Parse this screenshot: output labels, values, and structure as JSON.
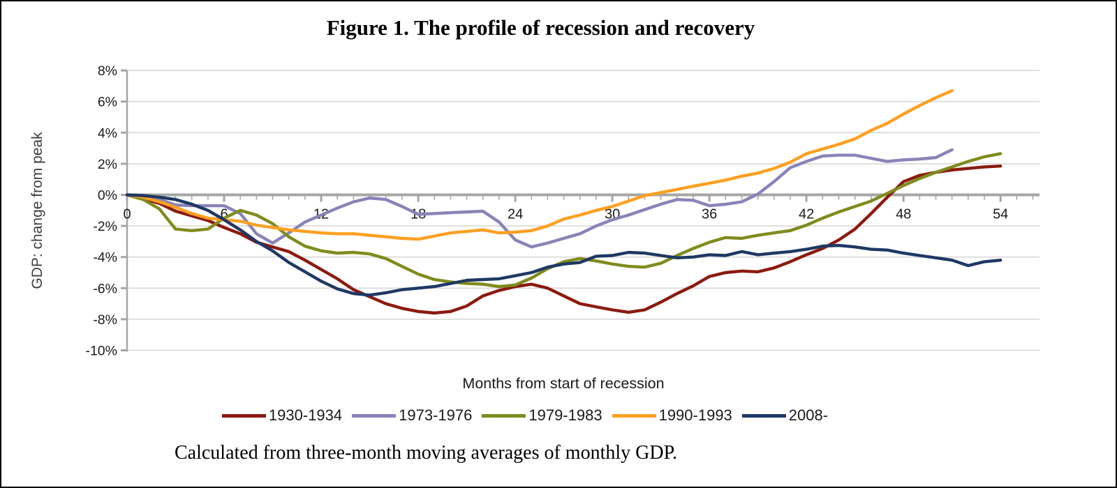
{
  "figure": {
    "caption": "Calculated from three-month moving averages of monthly GDP."
  },
  "chart_data": {
    "type": "line",
    "title": "Figure 1. The profile of recession and recovery",
    "xlabel": "Months from start of recession",
    "ylabel": "GDP: change from peak",
    "x_ticks": [
      0,
      6,
      12,
      18,
      24,
      30,
      36,
      42,
      48,
      54
    ],
    "x_tick_labels": [
      "0",
      "6",
      "12",
      "18",
      "24",
      "30",
      "36",
      "42",
      "48",
      "54"
    ],
    "y_ticks": [
      8,
      6,
      4,
      2,
      0,
      -2,
      -4,
      -6,
      -8,
      -10
    ],
    "y_tick_labels": [
      "8%",
      "6%",
      "4%",
      "2%",
      "0%",
      "-2%",
      "-4%",
      "-6%",
      "-8%",
      "-10%"
    ],
    "ylim": [
      -10,
      8
    ],
    "xlim": [
      0,
      56.5
    ],
    "grid": "horizontal",
    "legend_position": "bottom",
    "axis_colors": {
      "zero_line": "#a6a6a6",
      "gridline": "#d8d8d8",
      "spine": "#a6a6a6"
    },
    "series": [
      {
        "name": "1930-1934",
        "color": "#8B1A10",
        "start_month": 0,
        "values": [
          0,
          -0.25,
          -0.55,
          -1.05,
          -1.35,
          -1.65,
          -2.1,
          -2.5,
          -3.05,
          -3.35,
          -3.65,
          -4.2,
          -4.8,
          -5.4,
          -6.1,
          -6.55,
          -7.0,
          -7.3,
          -7.5,
          -7.6,
          -7.5,
          -7.15,
          -6.5,
          -6.15,
          -5.9,
          -5.75,
          -6.0,
          -6.5,
          -7.0,
          -7.2,
          -7.4,
          -7.55,
          -7.4,
          -6.9,
          -6.35,
          -5.85,
          -5.25,
          -5.0,
          -4.9,
          -4.95,
          -4.7,
          -4.3,
          -3.85,
          -3.45,
          -2.9,
          -2.2,
          -1.2,
          -0.15,
          0.85,
          1.25,
          1.45,
          1.6,
          1.7,
          1.8,
          1.85
        ]
      },
      {
        "name": "1973-1976",
        "color": "#8884B8",
        "start_month": 0,
        "values": [
          0,
          -0.1,
          -0.3,
          -0.65,
          -0.7,
          -0.7,
          -0.7,
          -1.2,
          -2.5,
          -3.1,
          -2.45,
          -1.75,
          -1.3,
          -0.85,
          -0.45,
          -0.2,
          -0.3,
          -0.75,
          -1.25,
          -1.2,
          -1.15,
          -1.1,
          -1.05,
          -1.75,
          -2.9,
          -3.35,
          -3.1,
          -2.8,
          -2.5,
          -2.0,
          -1.6,
          -1.3,
          -0.95,
          -0.6,
          -0.3,
          -0.35,
          -0.7,
          -0.6,
          -0.45,
          0.05,
          0.85,
          1.75,
          2.15,
          2.5,
          2.55,
          2.55,
          2.35,
          2.15,
          2.25,
          2.3,
          2.4,
          2.9
        ]
      },
      {
        "name": "1979-1983",
        "color": "#7F8B1D",
        "start_month": 0,
        "values": [
          0,
          -0.3,
          -0.9,
          -2.2,
          -2.3,
          -2.2,
          -1.5,
          -1.0,
          -1.3,
          -1.85,
          -2.7,
          -3.3,
          -3.6,
          -3.75,
          -3.7,
          -3.8,
          -4.1,
          -4.6,
          -5.1,
          -5.45,
          -5.6,
          -5.7,
          -5.75,
          -5.9,
          -5.8,
          -5.35,
          -4.75,
          -4.3,
          -4.1,
          -4.25,
          -4.45,
          -4.6,
          -4.65,
          -4.4,
          -3.9,
          -3.45,
          -3.05,
          -2.75,
          -2.8,
          -2.6,
          -2.45,
          -2.3,
          -1.95,
          -1.5,
          -1.1,
          -0.75,
          -0.4,
          0.1,
          0.6,
          1.05,
          1.45,
          1.8,
          2.15,
          2.45,
          2.65
        ]
      },
      {
        "name": "1990-1993",
        "color": "#FEA022",
        "start_month": 0,
        "values": [
          0,
          -0.15,
          -0.45,
          -0.8,
          -1.2,
          -1.5,
          -1.6,
          -1.7,
          -1.95,
          -2.1,
          -2.25,
          -2.35,
          -2.45,
          -2.5,
          -2.5,
          -2.6,
          -2.7,
          -2.8,
          -2.85,
          -2.65,
          -2.45,
          -2.35,
          -2.25,
          -2.45,
          -2.4,
          -2.3,
          -2.0,
          -1.55,
          -1.3,
          -1.0,
          -0.75,
          -0.4,
          -0.05,
          0.15,
          0.35,
          0.55,
          0.75,
          0.95,
          1.2,
          1.4,
          1.7,
          2.1,
          2.65,
          2.95,
          3.25,
          3.6,
          4.15,
          4.6,
          5.2,
          5.75,
          6.25,
          6.7
        ]
      },
      {
        "name": "2008-",
        "color": "#1F3864",
        "start_month": 0,
        "values": [
          0,
          -0.05,
          -0.15,
          -0.3,
          -0.6,
          -1.0,
          -1.6,
          -2.25,
          -3.0,
          -3.6,
          -4.35,
          -4.95,
          -5.55,
          -6.05,
          -6.35,
          -6.45,
          -6.3,
          -6.1,
          -6.0,
          -5.9,
          -5.7,
          -5.5,
          -5.45,
          -5.4,
          -5.2,
          -5.0,
          -4.65,
          -4.45,
          -4.35,
          -3.95,
          -3.9,
          -3.7,
          -3.75,
          -3.9,
          -4.05,
          -4.0,
          -3.85,
          -3.9,
          -3.65,
          -3.85,
          -3.75,
          -3.65,
          -3.5,
          -3.3,
          -3.25,
          -3.35,
          -3.5,
          -3.55,
          -3.75,
          -3.9,
          -4.05,
          -4.2,
          -4.55,
          -4.3,
          -4.2
        ]
      }
    ]
  }
}
